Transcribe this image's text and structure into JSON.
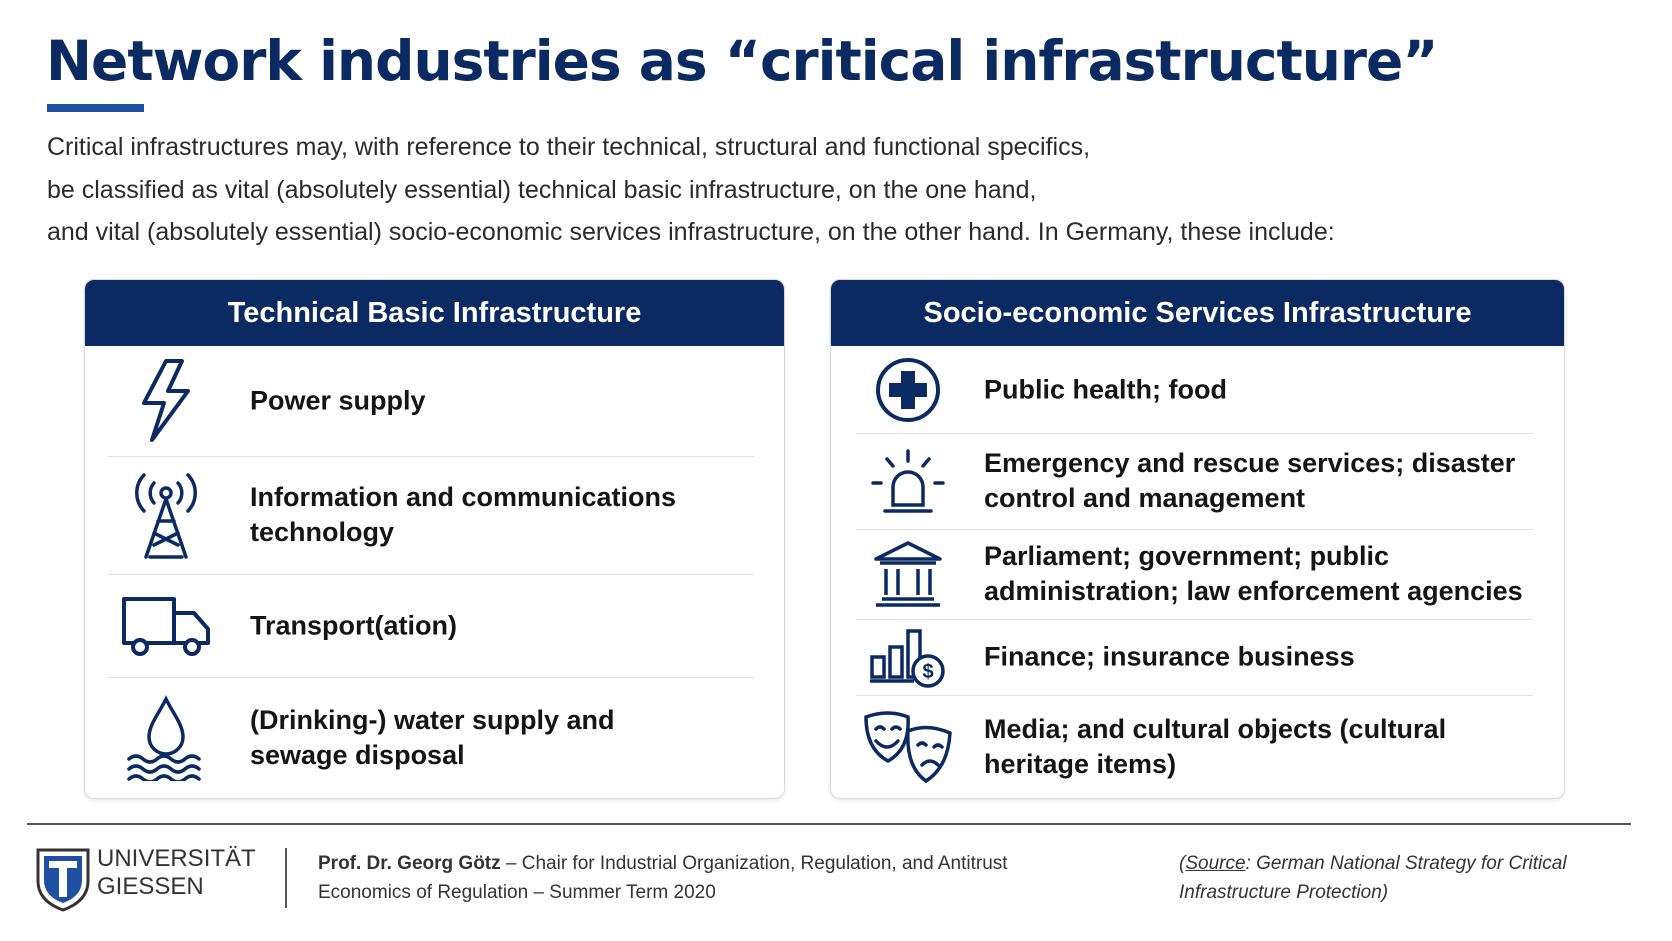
{
  "title": "Network industries as “critical infrastructure”",
  "intro": [
    "Critical infrastructures may, with reference to their technical, structural and functional specifics,",
    "be classified as vital (absolutely essential) technical basic infrastructure, on the one hand,",
    "and vital (absolutely essential) socio-economic services infrastructure, on the other hand. In Germany, these include:"
  ],
  "panels": [
    {
      "title": "Technical Basic Infrastructure",
      "items": [
        {
          "lines": [
            "Power supply"
          ]
        },
        {
          "lines": [
            "Information and communications",
            "technology"
          ]
        },
        {
          "lines": [
            "Transport(ation)"
          ]
        },
        {
          "lines": [
            "(Drinking-) water supply and",
            "sewage disposal"
          ]
        }
      ]
    },
    {
      "title": "Socio-economic Services Infrastructure",
      "items": [
        {
          "lines": [
            "Public health; food"
          ]
        },
        {
          "lines": [
            "Emergency and rescue services; disaster",
            "control and management"
          ]
        },
        {
          "lines": [
            "Parliament; government; public",
            "administration; law enforcement agencies"
          ]
        },
        {
          "lines": [
            "Finance; insurance business"
          ]
        },
        {
          "lines": [
            "Media; and cultural objects (cultural",
            "heritage items)"
          ]
        }
      ]
    }
  ],
  "footer": {
    "logo": [
      "UNIVERSITÄT",
      "GIESSEN"
    ],
    "author": "Prof. Dr. Georg Götz",
    "chair": " – Chair for Industrial Organization, Regulation, and Antitrust",
    "course": "Economics of Regulation – Summer Term  2020",
    "source": {
      "prefix": "(",
      "label": "Source",
      "line1": ": German National Strategy for Critical",
      "line2": "Infrastructure Protection)"
    }
  }
}
